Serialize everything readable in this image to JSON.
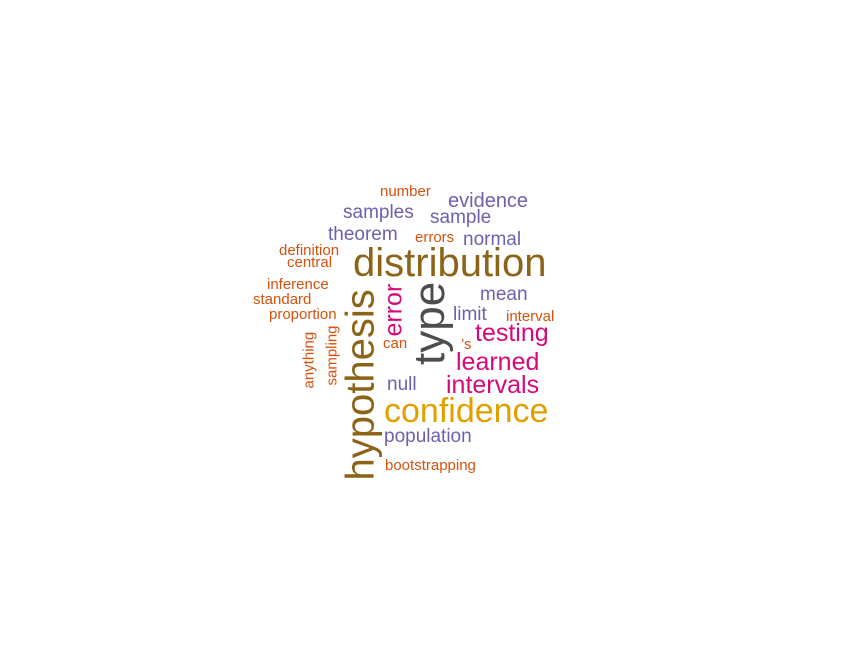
{
  "palette": {
    "dark_gray": "#4d4d4d",
    "brown": "#8c6418",
    "gold": "#e0a000",
    "magenta": "#d6087a",
    "purple": "#6b62ad",
    "orange": "#d4520e"
  },
  "words": [
    {
      "text": "number",
      "color": "orange"
    },
    {
      "text": "evidence",
      "color": "purple"
    },
    {
      "text": "samples",
      "color": "purple"
    },
    {
      "text": "sample",
      "color": "purple"
    },
    {
      "text": "theorem",
      "color": "purple"
    },
    {
      "text": "errors",
      "color": "orange"
    },
    {
      "text": "normal",
      "color": "purple"
    },
    {
      "text": "definition",
      "color": "orange"
    },
    {
      "text": "central",
      "color": "orange"
    },
    {
      "text": "distribution",
      "color": "brown"
    },
    {
      "text": "inference",
      "color": "orange"
    },
    {
      "text": "standard",
      "color": "orange"
    },
    {
      "text": "mean",
      "color": "purple"
    },
    {
      "text": "proportion",
      "color": "orange"
    },
    {
      "text": "limit",
      "color": "purple"
    },
    {
      "text": "interval",
      "color": "orange"
    },
    {
      "text": "testing",
      "color": "magenta"
    },
    {
      "text": "can",
      "color": "orange"
    },
    {
      "text": "’s",
      "color": "orange"
    },
    {
      "text": "learned",
      "color": "magenta"
    },
    {
      "text": "null",
      "color": "purple"
    },
    {
      "text": "intervals",
      "color": "magenta"
    },
    {
      "text": "confidence",
      "color": "gold"
    },
    {
      "text": "population",
      "color": "purple"
    },
    {
      "text": "bootstrapping",
      "color": "orange"
    },
    {
      "text": "hypothesis",
      "color": "brown"
    },
    {
      "text": "type",
      "color": "dark_gray"
    },
    {
      "text": "error",
      "color": "magenta"
    },
    {
      "text": "anything",
      "color": "orange"
    },
    {
      "text": "sampling",
      "color": "orange"
    }
  ]
}
